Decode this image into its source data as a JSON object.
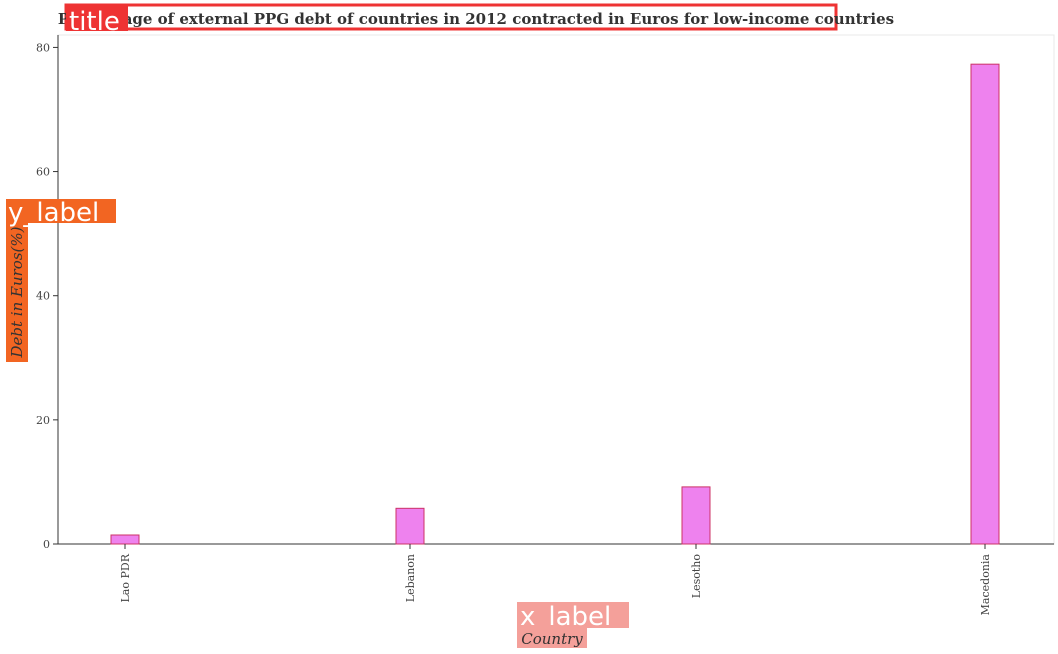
{
  "chart_data": {
    "type": "bar",
    "title": "Percentage of external PPG debt of countries in 2012 contracted in Euros for low-income countries",
    "xlabel": "Country",
    "ylabel": "Debt in Euros(%)",
    "categories": [
      "Lao PDR",
      "Lebanon",
      "Lesotho",
      "Macedonia"
    ],
    "values": [
      1.45,
      5.75,
      9.2,
      77.3
    ],
    "ylim": [
      0,
      82
    ],
    "yticks": [
      0,
      20,
      40,
      60,
      80
    ],
    "grid": false,
    "bar_color": "#ee82ee",
    "bar_edge_color": "#cc3366"
  },
  "annotations": {
    "title_tag": "title",
    "ylabel_tag": "y_label",
    "xlabel_tag": "x_label",
    "title_color": "#ee3333",
    "ylabel_color": "#f26522",
    "xlabel_color": "#f4a09a"
  }
}
